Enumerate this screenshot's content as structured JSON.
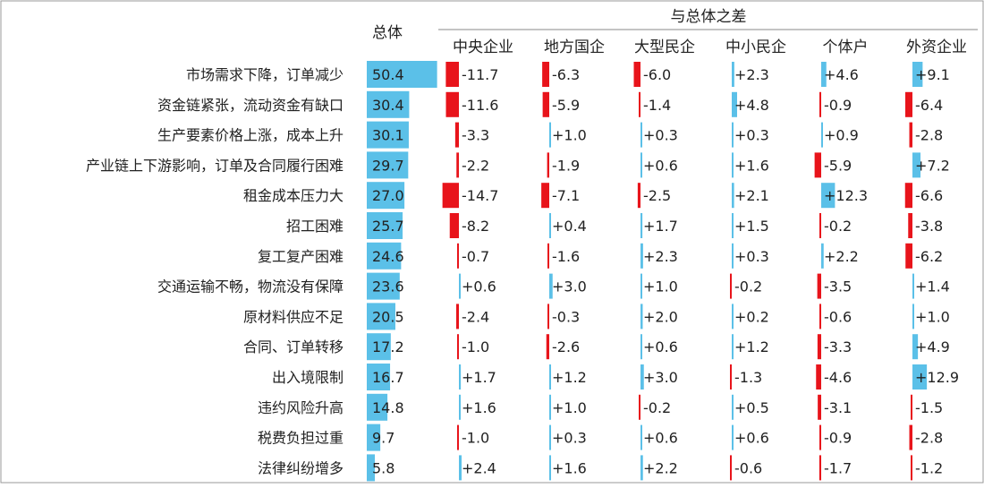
{
  "colors": {
    "positive": "#5BC0E8",
    "negative": "#E8141B",
    "total_bar": "#5BC0E8",
    "text": "#222222",
    "rule": "#888888",
    "border": "#999999"
  },
  "header": {
    "total_label": "总体",
    "diff_label": "与总体之差"
  },
  "chart_data": {
    "type": "table",
    "row_labels": [
      "市场需求下降，订单减少",
      "资金链紧张，流动资金有缺口",
      "生产要素价格上涨，成本上升",
      "产业链上下游影响，订单及合同履行困难",
      "租金成本压力大",
      "招工困难",
      "复工复产困难",
      "交通运输不畅，物流没有保障",
      "原材料供应不足",
      "合同、订单转移",
      "出入境限制",
      "违约风险升高",
      "税费负担过重",
      "法律纠纷增多"
    ],
    "total": {
      "values": [
        50.4,
        30.4,
        30.1,
        29.7,
        27.0,
        25.7,
        24.6,
        23.6,
        20.5,
        17.2,
        16.7,
        14.8,
        9.7,
        5.8
      ],
      "labels": [
        "50.4",
        "30.4",
        "30.1",
        "29.7",
        "27.0",
        "25.7",
        "24.6",
        "23.6",
        "20.5",
        "17.2",
        "16.7",
        "14.8",
        "9.7",
        "5.8"
      ]
    },
    "series": [
      {
        "name": "中央企业",
        "values": [
          -11.7,
          -11.6,
          -3.3,
          -2.2,
          -14.7,
          -8.2,
          -0.7,
          0.6,
          -2.4,
          -1.0,
          1.7,
          1.6,
          -1.0,
          2.4
        ],
        "labels": [
          "-11.7",
          "-11.6",
          "-3.3",
          "-2.2",
          "-14.7",
          "-8.2",
          "-0.7",
          "+0.6",
          "-2.4",
          "-1.0",
          "+1.7",
          "+1.6",
          "-1.0",
          "+2.4"
        ]
      },
      {
        "name": "地方国企",
        "values": [
          -6.3,
          -5.9,
          1.0,
          -1.9,
          -7.1,
          0.4,
          -1.6,
          3.0,
          -0.3,
          -2.6,
          1.2,
          1.0,
          0.3,
          1.6
        ],
        "labels": [
          "-6.3",
          "-5.9",
          "+1.0",
          "-1.9",
          "-7.1",
          "+0.4",
          "-1.6",
          "+3.0",
          "-0.3",
          "-2.6",
          "+1.2",
          "+1.0",
          "+0.3",
          "+1.6"
        ]
      },
      {
        "name": "大型民企",
        "values": [
          -6.0,
          -1.4,
          0.3,
          0.6,
          -2.5,
          1.7,
          2.3,
          1.0,
          2.0,
          0.6,
          3.0,
          -0.2,
          0.6,
          2.2
        ],
        "labels": [
          "-6.0",
          "-1.4",
          "+0.3",
          "+0.6",
          "-2.5",
          "+1.7",
          "+2.3",
          "+1.0",
          "+2.0",
          "+0.6",
          "+3.0",
          "-0.2",
          "+0.6",
          "+2.2"
        ]
      },
      {
        "name": "中小民企",
        "values": [
          2.3,
          4.8,
          0.3,
          1.6,
          2.1,
          1.5,
          0.3,
          -0.2,
          0.2,
          1.2,
          -1.3,
          0.5,
          0.6,
          -0.6
        ],
        "labels": [
          "+2.3",
          "+4.8",
          "+0.3",
          "+1.6",
          "+2.1",
          "+1.5",
          "+0.3",
          "-0.2",
          "+0.2",
          "+1.2",
          "-1.3",
          "+0.5",
          "+0.6",
          "-0.6"
        ]
      },
      {
        "name": "个体户",
        "values": [
          4.6,
          -0.9,
          0.9,
          -5.9,
          12.3,
          -0.2,
          2.2,
          -3.5,
          -0.6,
          -3.3,
          -4.6,
          -3.1,
          -0.9,
          -1.7
        ],
        "labels": [
          "+4.6",
          "-0.9",
          "+0.9",
          "-5.9",
          "+12.3",
          "-0.2",
          "+2.2",
          "-3.5",
          "-0.6",
          "-3.3",
          "-4.6",
          "-3.1",
          "-0.9",
          "-1.7"
        ]
      },
      {
        "name": "外资企业",
        "values": [
          9.1,
          -6.4,
          -2.8,
          7.2,
          -6.6,
          -3.8,
          -6.2,
          1.4,
          1.0,
          4.9,
          12.9,
          -1.5,
          -2.8,
          -1.2
        ],
        "labels": [
          "+9.1",
          "-6.4",
          "-2.8",
          "+7.2",
          "-6.6",
          "-3.8",
          "-6.2",
          "+1.4",
          "+1.0",
          "+4.9",
          "+12.9",
          "-1.5",
          "-2.8",
          "-1.2"
        ]
      }
    ]
  }
}
